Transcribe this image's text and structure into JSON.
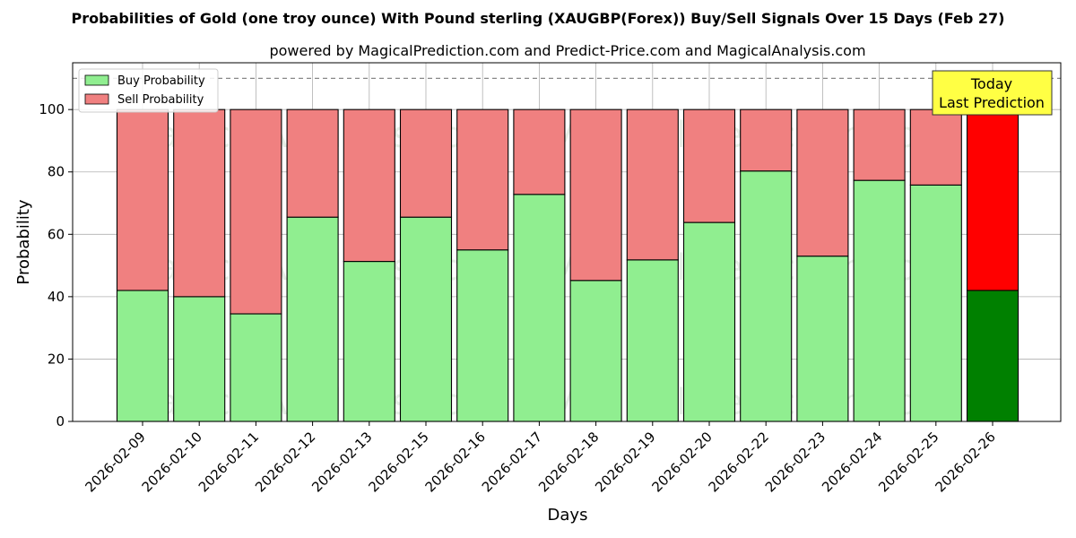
{
  "chart_data": {
    "type": "bar",
    "stacked": true,
    "title": "Probabilities of Gold (one troy ounce) With Pound sterling (XAUGBP(Forex)) Buy/Sell Signals Over 15 Days (Feb 27)",
    "subtitle": "powered by MagicalPrediction.com and Predict-Price.com and MagicalAnalysis.com",
    "xlabel": "Days",
    "ylabel": "Probability",
    "ylim": [
      0,
      115
    ],
    "yticks": [
      0,
      20,
      40,
      60,
      80,
      100
    ],
    "grid": true,
    "reference_line": 110,
    "legend_position": "top-left",
    "categories": [
      "2026-02-09",
      "2026-02-10",
      "2026-02-11",
      "2026-02-12",
      "2026-02-13",
      "2026-02-15",
      "2026-02-16",
      "2026-02-17",
      "2026-02-18",
      "2026-02-19",
      "2026-02-20",
      "2026-02-22",
      "2026-02-23",
      "2026-02-24",
      "2026-02-25",
      "2026-02-26"
    ],
    "series": [
      {
        "name": "Buy Probability",
        "color": "#90ee90",
        "highlight_color": "#008000",
        "values": [
          42,
          40,
          34.5,
          65.5,
          51.3,
          65.5,
          55,
          72.8,
          45.2,
          51.8,
          63.8,
          80.3,
          53,
          77.3,
          75.8,
          42
        ]
      },
      {
        "name": "Sell Probability",
        "color": "#f08080",
        "highlight_color": "#ff0000",
        "values": [
          58,
          60,
          65.5,
          34.5,
          48.7,
          34.5,
          45,
          27.2,
          54.8,
          48.2,
          36.2,
          19.7,
          47,
          22.7,
          24.2,
          58
        ]
      }
    ],
    "highlight_index": 15,
    "annotation": {
      "line1": "Today",
      "line2": "Last Prediction",
      "color": "#ffff44"
    },
    "watermarks": [
      "MagicalAnalysis.com",
      "MagicalPrediction.com"
    ]
  }
}
